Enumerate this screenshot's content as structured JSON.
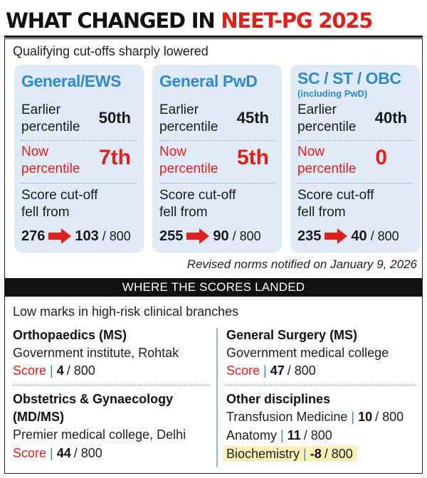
{
  "headline": {
    "part1": "WHAT CHANGED IN ",
    "part2": "NEET-PG 2025"
  },
  "subhead": "Qualifying cut-offs sharply lowered",
  "cards": [
    {
      "title": "General/EWS",
      "subtitle": "",
      "earlier_label_1": "Earlier",
      "earlier_label_2": "percentile",
      "earlier_value": "50th",
      "now_label_1": "Now",
      "now_label_2": "percentile",
      "now_value": "7th",
      "score_label_1": "Score cut-off",
      "score_label_2": "fell from",
      "from": "276",
      "to": "103",
      "out_of": "/ 800"
    },
    {
      "title": "General PwD",
      "subtitle": "",
      "earlier_label_1": "Earlier",
      "earlier_label_2": "percentile",
      "earlier_value": "45th",
      "now_label_1": "Now",
      "now_label_2": "percentile",
      "now_value": "5th",
      "score_label_1": "Score cut-off",
      "score_label_2": "fell from",
      "from": "255",
      "to": "90",
      "out_of": "/ 800"
    },
    {
      "title": "SC / ST / OBC",
      "subtitle": "(including PwD)",
      "earlier_label_1": "Earlier",
      "earlier_label_2": "percentile",
      "earlier_value": "40th",
      "now_label_1": "Now",
      "now_label_2": "percentile",
      "now_value": "0",
      "score_label_1": "Score cut-off",
      "score_label_2": "fell from",
      "from": "235",
      "to": "40",
      "out_of": "/ 800"
    }
  ],
  "note": "Revised norms notified on January 9, 2026",
  "band": "WHERE THE SCORES LANDED",
  "lowmarks": "Low marks in high-risk clinical branches",
  "score_word": "Score",
  "pipe": "|",
  "branches": {
    "ortho": {
      "title": "Orthopaedics (MS)",
      "institute": "Government institute, Rohtak",
      "score": "4",
      "out_of": "/ 800"
    },
    "surgery": {
      "title": "General Surgery (MS)",
      "institute": "Government medical college",
      "score": "47",
      "out_of": "/ 800"
    },
    "obgyn": {
      "title_1": "Obstetrics & Gynaecology",
      "title_2": "(MD/MS)",
      "institute": "Premier medical college, Delhi",
      "score": "44",
      "out_of": "/ 800"
    },
    "other": {
      "title": "Other disciplines",
      "items": [
        {
          "name": "Transfusion Medicine",
          "score": "10",
          "out_of": "/ 800"
        },
        {
          "name": "Anatomy",
          "score": "11",
          "out_of": "/ 800"
        },
        {
          "name": "Biochemistry",
          "score": "-8",
          "out_of": "/ 800"
        }
      ]
    }
  },
  "colors": {
    "red": "#e0201b",
    "blue": "#2d8ad0",
    "card_bg": "#dfeaf6",
    "highlight": "#fbf0b8"
  }
}
